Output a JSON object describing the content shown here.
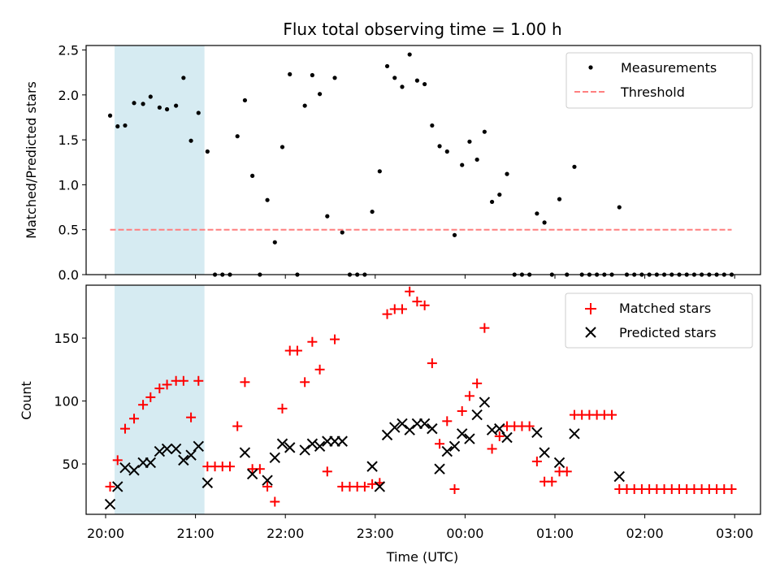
{
  "chart_data": [
    {
      "type": "scatter",
      "title": "Flux total observing time = 1.00 h",
      "xlabel": "",
      "ylabel": "Matched/Predicted stars",
      "ylim": [
        0,
        2.55
      ],
      "xlim": [
        "20:00",
        "03:00"
      ],
      "yticks": [
        "0.0",
        "0.5",
        "1.0",
        "1.5",
        "2.0",
        "2.5"
      ],
      "grid": false,
      "legend_position": "top-right",
      "highlight_span": [
        "20:06",
        "21:06"
      ],
      "highlight_color": "#add8e6",
      "series": [
        {
          "name": "Measurements",
          "color": "#000000",
          "marker": "dot",
          "points": [
            [
              "20:03",
              1.77
            ],
            [
              "20:08",
              1.65
            ],
            [
              "20:13",
              1.66
            ],
            [
              "20:19",
              1.91
            ],
            [
              "20:25",
              1.9
            ],
            [
              "20:30",
              1.98
            ],
            [
              "20:36",
              1.86
            ],
            [
              "20:41",
              1.84
            ],
            [
              "20:47",
              1.88
            ],
            [
              "20:52",
              2.19
            ],
            [
              "20:57",
              1.49
            ],
            [
              "21:02",
              1.8
            ],
            [
              "21:08",
              1.37
            ],
            [
              "21:13",
              0.0
            ],
            [
              "21:18",
              0.0
            ],
            [
              "21:23",
              0.0
            ],
            [
              "21:28",
              1.54
            ],
            [
              "21:33",
              1.94
            ],
            [
              "21:38",
              1.1
            ],
            [
              "21:43",
              0.0
            ],
            [
              "21:48",
              0.83
            ],
            [
              "21:53",
              0.36
            ],
            [
              "21:58",
              1.42
            ],
            [
              "22:03",
              2.23
            ],
            [
              "22:08",
              0.0
            ],
            [
              "22:13",
              1.88
            ],
            [
              "22:18",
              2.22
            ],
            [
              "22:23",
              2.01
            ],
            [
              "22:28",
              0.65
            ],
            [
              "22:33",
              2.19
            ],
            [
              "22:38",
              0.47
            ],
            [
              "22:43",
              0.0
            ],
            [
              "22:48",
              0.0
            ],
            [
              "22:53",
              0.0
            ],
            [
              "22:58",
              0.7
            ],
            [
              "23:03",
              1.15
            ],
            [
              "23:08",
              2.32
            ],
            [
              "23:13",
              2.19
            ],
            [
              "23:18",
              2.09
            ],
            [
              "23:23",
              2.45
            ],
            [
              "23:28",
              2.16
            ],
            [
              "23:33",
              2.12
            ],
            [
              "23:38",
              1.66
            ],
            [
              "23:43",
              1.43
            ],
            [
              "23:48",
              1.37
            ],
            [
              "23:53",
              0.44
            ],
            [
              "23:58",
              1.22
            ],
            [
              "00:03",
              1.48
            ],
            [
              "00:08",
              1.28
            ],
            [
              "00:13",
              1.59
            ],
            [
              "00:18",
              0.81
            ],
            [
              "00:23",
              0.89
            ],
            [
              "00:28",
              1.12
            ],
            [
              "00:33",
              0.0
            ],
            [
              "00:38",
              0.0
            ],
            [
              "00:43",
              0.0
            ],
            [
              "00:48",
              0.68
            ],
            [
              "00:53",
              0.58
            ],
            [
              "00:58",
              0.0
            ],
            [
              "01:03",
              0.84
            ],
            [
              "01:08",
              0.0
            ],
            [
              "01:13",
              1.2
            ],
            [
              "01:18",
              0.0
            ],
            [
              "01:23",
              0.0
            ],
            [
              "01:28",
              0.0
            ],
            [
              "01:33",
              0.0
            ],
            [
              "01:38",
              0.0
            ],
            [
              "01:43",
              0.75
            ],
            [
              "01:48",
              0.0
            ],
            [
              "01:53",
              0.0
            ],
            [
              "01:58",
              0.0
            ],
            [
              "02:03",
              0.0
            ],
            [
              "02:08",
              0.0
            ],
            [
              "02:13",
              0.0
            ],
            [
              "02:18",
              0.0
            ],
            [
              "02:23",
              0.0
            ],
            [
              "02:28",
              0.0
            ],
            [
              "02:33",
              0.0
            ],
            [
              "02:38",
              0.0
            ],
            [
              "02:43",
              0.0
            ],
            [
              "02:48",
              0.0
            ],
            [
              "02:53",
              0.0
            ],
            [
              "02:58",
              0.0
            ]
          ]
        },
        {
          "name": "Threshold",
          "color": "#ff7f7f",
          "marker": "dashed-line",
          "points": [
            [
              "20:03",
              0.5
            ],
            [
              "02:58",
              0.5
            ]
          ]
        }
      ]
    },
    {
      "type": "scatter",
      "title": "",
      "xlabel": "Time (UTC)",
      "ylabel": "Count",
      "ylim": [
        10,
        192
      ],
      "xlim": [
        "20:00",
        "03:00"
      ],
      "xticks": [
        "20:00",
        "21:00",
        "22:00",
        "23:00",
        "00:00",
        "01:00",
        "02:00",
        "03:00"
      ],
      "yticks": [
        "50",
        "100",
        "150"
      ],
      "grid": false,
      "legend_position": "top-right",
      "highlight_span": [
        "20:06",
        "21:06"
      ],
      "highlight_color": "#add8e6",
      "series": [
        {
          "name": "Matched stars",
          "color": "#ff0000",
          "marker": "plus",
          "points": [
            [
              "20:03",
              32
            ],
            [
              "20:08",
              53
            ],
            [
              "20:13",
              78
            ],
            [
              "20:19",
              86
            ],
            [
              "20:25",
              97
            ],
            [
              "20:30",
              103
            ],
            [
              "20:36",
              110
            ],
            [
              "20:41",
              113
            ],
            [
              "20:47",
              116
            ],
            [
              "20:52",
              116
            ],
            [
              "20:57",
              87
            ],
            [
              "21:02",
              116
            ],
            [
              "21:08",
              48
            ],
            [
              "21:13",
              48
            ],
            [
              "21:18",
              48
            ],
            [
              "21:23",
              48
            ],
            [
              "21:28",
              80
            ],
            [
              "21:33",
              115
            ],
            [
              "21:38",
              46
            ],
            [
              "21:43",
              46
            ],
            [
              "21:48",
              32
            ],
            [
              "21:53",
              20
            ],
            [
              "21:58",
              94
            ],
            [
              "22:03",
              140
            ],
            [
              "22:08",
              140
            ],
            [
              "22:13",
              115
            ],
            [
              "22:18",
              147
            ],
            [
              "22:23",
              125
            ],
            [
              "22:28",
              44
            ],
            [
              "22:33",
              149
            ],
            [
              "22:38",
              32
            ],
            [
              "22:43",
              32
            ],
            [
              "22:48",
              32
            ],
            [
              "22:53",
              32
            ],
            [
              "22:58",
              34
            ],
            [
              "23:03",
              35
            ],
            [
              "23:08",
              169
            ],
            [
              "23:13",
              173
            ],
            [
              "23:18",
              173
            ],
            [
              "23:23",
              187
            ],
            [
              "23:28",
              179
            ],
            [
              "23:33",
              176
            ],
            [
              "23:38",
              130
            ],
            [
              "23:43",
              66
            ],
            [
              "23:48",
              84
            ],
            [
              "23:53",
              30
            ],
            [
              "23:58",
              92
            ],
            [
              "00:03",
              104
            ],
            [
              "00:08",
              114
            ],
            [
              "00:13",
              158
            ],
            [
              "00:18",
              62
            ],
            [
              "00:23",
              72
            ],
            [
              "00:28",
              80
            ],
            [
              "00:33",
              80
            ],
            [
              "00:38",
              80
            ],
            [
              "00:43",
              80
            ],
            [
              "00:48",
              52
            ],
            [
              "00:53",
              36
            ],
            [
              "00:58",
              36
            ],
            [
              "01:03",
              44
            ],
            [
              "01:08",
              44
            ],
            [
              "01:13",
              89
            ],
            [
              "01:18",
              89
            ],
            [
              "01:23",
              89
            ],
            [
              "01:28",
              89
            ],
            [
              "01:33",
              89
            ],
            [
              "01:38",
              89
            ],
            [
              "01:43",
              30
            ],
            [
              "01:48",
              30
            ],
            [
              "01:53",
              30
            ],
            [
              "01:58",
              30
            ],
            [
              "02:03",
              30
            ],
            [
              "02:08",
              30
            ],
            [
              "02:13",
              30
            ],
            [
              "02:18",
              30
            ],
            [
              "02:23",
              30
            ],
            [
              "02:28",
              30
            ],
            [
              "02:33",
              30
            ],
            [
              "02:38",
              30
            ],
            [
              "02:43",
              30
            ],
            [
              "02:48",
              30
            ],
            [
              "02:53",
              30
            ],
            [
              "02:58",
              30
            ]
          ]
        },
        {
          "name": "Predicted stars",
          "color": "#000000",
          "marker": "x",
          "points": [
            [
              "20:03",
              18
            ],
            [
              "20:08",
              32
            ],
            [
              "20:13",
              47
            ],
            [
              "20:19",
              45
            ],
            [
              "20:25",
              51
            ],
            [
              "20:30",
              51
            ],
            [
              "20:36",
              60
            ],
            [
              "20:41",
              62
            ],
            [
              "20:47",
              62
            ],
            [
              "20:52",
              53
            ],
            [
              "20:57",
              57
            ],
            [
              "21:02",
              64
            ],
            [
              "21:08",
              35
            ],
            [
              "21:33",
              59
            ],
            [
              "21:38",
              42
            ],
            [
              "21:48",
              37
            ],
            [
              "21:53",
              55
            ],
            [
              "21:58",
              66
            ],
            [
              "22:03",
              63
            ],
            [
              "22:13",
              61
            ],
            [
              "22:18",
              66
            ],
            [
              "22:23",
              64
            ],
            [
              "22:28",
              68
            ],
            [
              "22:33",
              68
            ],
            [
              "22:38",
              68
            ],
            [
              "22:58",
              48
            ],
            [
              "23:03",
              32
            ],
            [
              "23:08",
              73
            ],
            [
              "23:13",
              79
            ],
            [
              "23:18",
              82
            ],
            [
              "23:23",
              77
            ],
            [
              "23:28",
              82
            ],
            [
              "23:33",
              82
            ],
            [
              "23:38",
              78
            ],
            [
              "23:43",
              46
            ],
            [
              "23:48",
              60
            ],
            [
              "23:53",
              64
            ],
            [
              "23:58",
              74
            ],
            [
              "00:03",
              70
            ],
            [
              "00:08",
              89
            ],
            [
              "00:13",
              99
            ],
            [
              "00:18",
              77
            ],
            [
              "00:23",
              78
            ],
            [
              "00:28",
              71
            ],
            [
              "00:48",
              75
            ],
            [
              "00:53",
              59
            ],
            [
              "01:03",
              51
            ],
            [
              "01:13",
              74
            ],
            [
              "01:43",
              40
            ]
          ]
        }
      ]
    }
  ]
}
